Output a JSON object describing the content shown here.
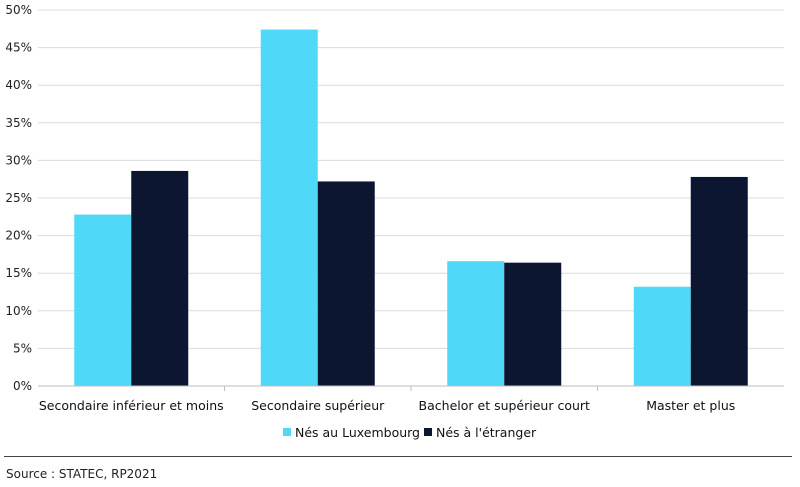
{
  "chart_data": {
    "type": "bar",
    "categories": [
      "Secondaire inférieur et moins",
      "Secondaire supérieur",
      "Bachelor et supérieur court",
      "Master et plus"
    ],
    "series": [
      {
        "name": "Nés au Luxembourg",
        "values": [
          22.8,
          47.4,
          16.6,
          13.2
        ],
        "color": "#4fd8f7"
      },
      {
        "name": "Nés à l'étranger",
        "values": [
          28.6,
          27.2,
          16.4,
          27.8
        ],
        "color": "#0c1630"
      }
    ],
    "ylim": [
      0,
      50
    ],
    "y_ticks": [
      "0%",
      "5%",
      "10%",
      "15%",
      "20%",
      "25%",
      "30%",
      "35%",
      "40%",
      "45%",
      "50%"
    ],
    "grid": true,
    "legend_position": "bottom"
  },
  "source": "Source : STATEC, RP2021"
}
